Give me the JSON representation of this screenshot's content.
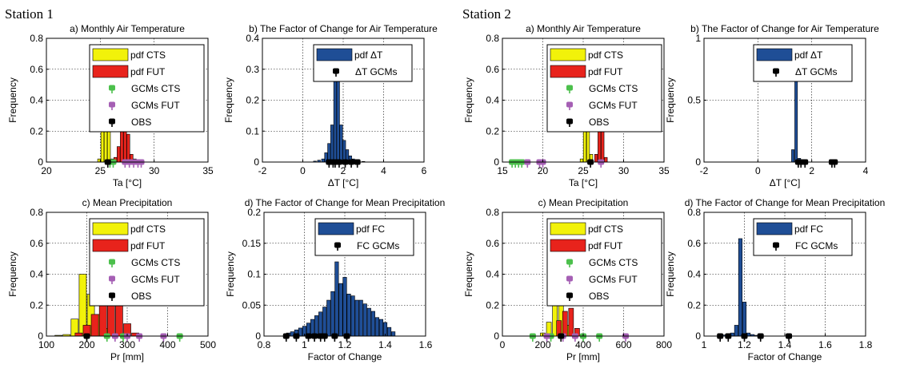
{
  "stations": [
    "Station 1",
    "Station 2"
  ],
  "colors": {
    "pdf_cts": "#f2f20a",
    "pdf_fut": "#e8231c",
    "pdf_delta": "#1f4e96",
    "gcms_cts": "#4cc04c",
    "gcms_fut": "#a55fb4",
    "obs": "#000000",
    "grid": "#000000"
  },
  "chart_data": [
    {
      "id": "s1a",
      "type": "bar",
      "title": "a) Monthly Air Temperature",
      "xlabel": "Ta [°C]",
      "ylabel": "Frequency",
      "xlim": [
        20,
        35
      ],
      "ylim": [
        0,
        0.8
      ],
      "xticks": [
        "20",
        "25",
        "30",
        "35"
      ],
      "xtick_values": [
        20,
        25,
        30,
        35
      ],
      "yticks": [
        "0",
        "0.2",
        "0.4",
        "0.6",
        "0.8"
      ],
      "ytick_values": [
        0,
        0.2,
        0.4,
        0.6,
        0.8
      ],
      "bar_width": 0.28,
      "series": [
        {
          "name": "pdf CTS",
          "x": [
            24.9,
            25.2,
            25.5,
            25.8,
            26.1
          ],
          "values": [
            0.02,
            0.48,
            0.72,
            0.35,
            0.02
          ]
        },
        {
          "name": "pdf FUT",
          "x": [
            26.4,
            26.7,
            27.0,
            27.3,
            27.6,
            27.9,
            28.2,
            28.5
          ],
          "values": [
            0.03,
            0.1,
            0.26,
            0.4,
            0.18,
            0.05,
            0.02,
            0.01
          ]
        }
      ],
      "markers": [
        {
          "name": "GCMs CTS",
          "x": [
            25.9,
            26.2
          ]
        },
        {
          "name": "GCMs FUT",
          "x": [
            27.3,
            27.7,
            28.1,
            28.5,
            28.8
          ]
        },
        {
          "name": "OBS",
          "x": [
            25.7
          ]
        }
      ],
      "legend": [
        "pdf CTS",
        "pdf FUT",
        "GCMs CTS",
        "GCMs FUT",
        "OBS"
      ]
    },
    {
      "id": "s1b",
      "type": "bar",
      "title": "b) The Factor of Change for Air Temperature",
      "xlabel": "ΔT [°C]",
      "ylabel": "Frequency",
      "xlim": [
        -2,
        6
      ],
      "ylim": [
        0,
        0.4
      ],
      "xticks": [
        "-2",
        "0",
        "2",
        "4",
        "6"
      ],
      "xtick_values": [
        -2,
        0,
        2,
        4,
        6
      ],
      "yticks": [
        "0",
        "0.1",
        "0.2",
        "0.3",
        "0.4"
      ],
      "ytick_values": [
        0,
        0.1,
        0.2,
        0.3,
        0.4
      ],
      "bar_width": 0.14,
      "series": [
        {
          "name": "pdf ΔT",
          "x": [
            0.6,
            0.8,
            1.0,
            1.15,
            1.3,
            1.45,
            1.6,
            1.75,
            1.9,
            2.05,
            2.2,
            2.35,
            2.5,
            2.7,
            3.0
          ],
          "values": [
            0.003,
            0.006,
            0.01,
            0.03,
            0.06,
            0.12,
            0.26,
            0.32,
            0.12,
            0.07,
            0.04,
            0.02,
            0.01,
            0.005,
            0.002
          ]
        }
      ],
      "markers": [
        {
          "name": "ΔT  GCMs",
          "x": [
            1.3,
            1.5,
            1.6,
            1.8,
            2.1,
            2.4,
            2.7
          ]
        }
      ],
      "legend": [
        "pdf ΔT",
        "ΔT  GCMs"
      ]
    },
    {
      "id": "s1c",
      "type": "bar",
      "title": "c) Mean Precipitation",
      "xlabel": "Pr [mm]",
      "ylabel": "Frequency",
      "xlim": [
        100,
        500
      ],
      "ylim": [
        0,
        0.8
      ],
      "xticks": [
        "100",
        "200",
        "300",
        "400",
        "500"
      ],
      "xtick_values": [
        100,
        200,
        300,
        400,
        500
      ],
      "yticks": [
        "0",
        "0.2",
        "0.4",
        "0.6",
        "0.8"
      ],
      "ytick_values": [
        0,
        0.2,
        0.4,
        0.6,
        0.8
      ],
      "bar_width": 18,
      "series": [
        {
          "name": "pdf CTS",
          "x": [
            130,
            150,
            170,
            190,
            210,
            230,
            250
          ],
          "values": [
            0.005,
            0.01,
            0.11,
            0.4,
            0.27,
            0.14,
            0.05
          ]
        },
        {
          "name": "pdf FUT",
          "x": [
            180,
            200,
            220,
            240,
            260,
            280,
            300,
            320
          ],
          "values": [
            0.02,
            0.07,
            0.14,
            0.21,
            0.27,
            0.2,
            0.08,
            0.02
          ]
        }
      ],
      "markers": [
        {
          "name": "GCMs CTS",
          "x": [
            250,
            290,
            430
          ]
        },
        {
          "name": "GCMs FUT",
          "x": [
            270,
            300,
            330,
            390
          ]
        },
        {
          "name": "OBS",
          "x": [
            200
          ]
        }
      ],
      "legend": [
        "pdf CTS",
        "pdf FUT",
        "GCMs CTS",
        "GCMs FUT",
        "OBS"
      ]
    },
    {
      "id": "s1d",
      "type": "bar",
      "title": "d) The Factor of Change for Mean Precipitation",
      "xlabel": "Factor of Change",
      "ylabel": "Frequency",
      "xlim": [
        0.8,
        1.6
      ],
      "ylim": [
        0,
        0.2
      ],
      "xticks": [
        "0.8",
        "1",
        "1.2",
        "1.4",
        "1.6"
      ],
      "xtick_values": [
        0.8,
        1.0,
        1.2,
        1.4,
        1.6
      ],
      "yticks": [
        "0",
        "0.05",
        "0.1",
        "0.15",
        "0.2"
      ],
      "ytick_values": [
        0,
        0.05,
        0.1,
        0.15,
        0.2
      ],
      "bar_width": 0.018,
      "series": [
        {
          "name": "pdf FC",
          "x": [
            0.92,
            0.94,
            0.96,
            0.98,
            1.0,
            1.02,
            1.04,
            1.06,
            1.08,
            1.1,
            1.12,
            1.14,
            1.16,
            1.18,
            1.2,
            1.22,
            1.24,
            1.26,
            1.28,
            1.3,
            1.32,
            1.34,
            1.36,
            1.38,
            1.4,
            1.42,
            1.44
          ],
          "values": [
            0.005,
            0.007,
            0.01,
            0.013,
            0.016,
            0.021,
            0.027,
            0.033,
            0.039,
            0.047,
            0.058,
            0.072,
            0.12,
            0.085,
            0.095,
            0.068,
            0.065,
            0.058,
            0.058,
            0.052,
            0.045,
            0.04,
            0.03,
            0.027,
            0.022,
            0.014,
            0.007
          ]
        }
      ],
      "markers": [
        {
          "name": "FC GCMs",
          "x": [
            0.91,
            0.96,
            1.02,
            1.05,
            1.08,
            1.1,
            1.15,
            1.21
          ]
        }
      ],
      "legend": [
        "pdf FC",
        "FC GCMs"
      ]
    },
    {
      "id": "s2a",
      "type": "bar",
      "title": "a) Monthly Air Temperature",
      "xlabel": "Ta [°C]",
      "ylabel": "Frequency",
      "xlim": [
        15,
        35
      ],
      "ylim": [
        0,
        0.8
      ],
      "xticks": [
        "15",
        "20",
        "25",
        "30",
        "35"
      ],
      "xtick_values": [
        15,
        20,
        25,
        30,
        35
      ],
      "yticks": [
        "0",
        "0.2",
        "0.4",
        "0.6",
        "0.8"
      ],
      "ytick_values": [
        0,
        0.2,
        0.4,
        0.6,
        0.8
      ],
      "bar_width": 0.36,
      "series": [
        {
          "name": "pdf CTS",
          "x": [
            24.8,
            25.2,
            25.6,
            26.0
          ],
          "values": [
            0.02,
            0.42,
            0.36,
            0.05
          ]
        },
        {
          "name": "pdf FUT",
          "x": [
            26.6,
            27.0,
            27.4,
            27.8
          ],
          "values": [
            0.05,
            0.5,
            0.3,
            0.03
          ]
        }
      ],
      "markers": [
        {
          "name": "GCMs CTS",
          "x": [
            16.2,
            16.6,
            17.0,
            17.4
          ]
        },
        {
          "name": "GCMs FUT",
          "x": [
            18.1,
            19.6,
            20.0,
            27.2
          ]
        },
        {
          "name": "OBS",
          "x": [
            25.9
          ]
        }
      ],
      "legend": [
        "pdf CTS",
        "pdf FUT",
        "GCMs CTS",
        "GCMs FUT",
        "OBS"
      ]
    },
    {
      "id": "s2b",
      "type": "bar",
      "title": "b) The Factor of Change for Air Temperature",
      "xlabel": "ΔT [°C]",
      "ylabel": "Frequency",
      "xlim": [
        -2,
        4
      ],
      "ylim": [
        0,
        1
      ],
      "xticks": [
        "-2",
        "0",
        "2",
        "4"
      ],
      "xtick_values": [
        -2,
        0,
        2,
        4
      ],
      "yticks": [
        "0",
        "0.5",
        "1"
      ],
      "ytick_values": [
        0,
        0.5,
        1
      ],
      "bar_width": 0.1,
      "series": [
        {
          "name": "pdf ΔT",
          "x": [
            1.3,
            1.42,
            1.54
          ],
          "values": [
            0.1,
            0.87,
            0.03
          ]
        }
      ],
      "markers": [
        {
          "name": "ΔT  GCMs",
          "x": [
            1.5,
            1.6,
            1.75,
            2.75,
            2.85
          ]
        }
      ],
      "legend": [
        "pdf ΔT",
        "ΔT  GCMs"
      ]
    },
    {
      "id": "s2c",
      "type": "bar",
      "title": "c) Mean Precipitation",
      "xlabel": "Pr [mm]",
      "ylabel": "Frequency",
      "xlim": [
        0,
        800
      ],
      "ylim": [
        0,
        0.8
      ],
      "xticks": [
        "0",
        "200",
        "400",
        "600",
        "800"
      ],
      "xtick_values": [
        0,
        200,
        400,
        600,
        800
      ],
      "yticks": [
        "0",
        "0.2",
        "0.4",
        "0.6",
        "0.8"
      ],
      "ytick_values": [
        0,
        0.2,
        0.4,
        0.6,
        0.8
      ],
      "bar_width": 24,
      "series": [
        {
          "name": "pdf CTS",
          "x": [
            200,
            230,
            260,
            290,
            320
          ],
          "values": [
            0.02,
            0.09,
            0.2,
            0.22,
            0.07
          ]
        },
        {
          "name": "pdf FUT",
          "x": [
            280,
            310,
            340,
            370
          ],
          "values": [
            0.1,
            0.16,
            0.18,
            0.05
          ]
        }
      ],
      "markers": [
        {
          "name": "GCMs CTS",
          "x": [
            150,
            240,
            400,
            480
          ]
        },
        {
          "name": "GCMs FUT",
          "x": [
            220,
            300,
            360,
            610
          ]
        },
        {
          "name": "OBS",
          "x": [
            290
          ]
        }
      ],
      "legend": [
        "pdf CTS",
        "pdf FUT",
        "GCMs CTS",
        "GCMs FUT",
        "OBS"
      ]
    },
    {
      "id": "s2d",
      "type": "bar",
      "title": "d) The Factor of Change for Mean Precipitation",
      "xlabel": "Factor of Change",
      "ylabel": "Frequency",
      "xlim": [
        1,
        1.8
      ],
      "ylim": [
        0,
        0.8
      ],
      "xticks": [
        "1",
        "1.2",
        "1.4",
        "1.6",
        "1.8"
      ],
      "xtick_values": [
        1.0,
        1.2,
        1.4,
        1.6,
        1.8
      ],
      "yticks": [
        "0",
        "0.2",
        "0.4",
        "0.6",
        "0.8"
      ],
      "ytick_values": [
        0,
        0.2,
        0.4,
        0.6,
        0.8
      ],
      "bar_width": 0.018,
      "series": [
        {
          "name": "pdf FC",
          "x": [
            1.08,
            1.1,
            1.12,
            1.14,
            1.16,
            1.18,
            1.2,
            1.22,
            1.24,
            1.26
          ],
          "values": [
            0.005,
            0.007,
            0.01,
            0.02,
            0.07,
            0.63,
            0.22,
            0.02,
            0.01,
            0.005
          ]
        }
      ],
      "markers": [
        {
          "name": "FC GCMs",
          "x": [
            1.08,
            1.12,
            1.2,
            1.28,
            1.42
          ]
        }
      ],
      "legend": [
        "pdf FC",
        "FC GCMs"
      ]
    }
  ]
}
